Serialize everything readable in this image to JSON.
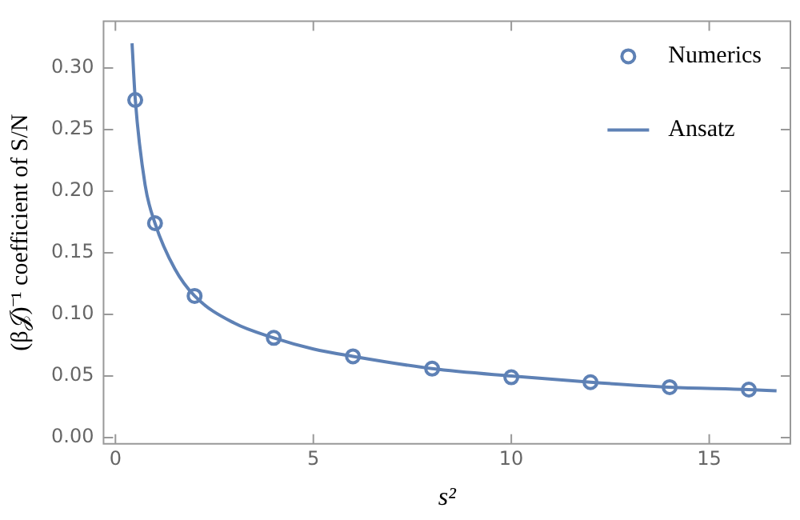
{
  "chart_data": {
    "type": "scatter",
    "xlabel": "s²",
    "ylabel": "(β𝒥)⁻¹ coefficient of S/N",
    "series": [
      {
        "name": "Numerics",
        "type": "scatter",
        "color": "#5e81b5",
        "marker": "circle",
        "x": [
          0.5,
          1,
          2,
          4,
          6,
          8,
          10,
          12,
          14,
          16
        ],
        "values": [
          0.274,
          0.174,
          0.115,
          0.081,
          0.066,
          0.056,
          0.049,
          0.045,
          0.041,
          0.039
        ]
      },
      {
        "name": "Ansatz",
        "type": "line",
        "color": "#5e81b5",
        "marker": "none",
        "line_style": "solid",
        "x": [
          0.42,
          0.5,
          0.75,
          1,
          1.5,
          2,
          3,
          4,
          5,
          6,
          8,
          10,
          12,
          14,
          16,
          16.7
        ],
        "values": [
          0.32,
          0.275,
          0.205,
          0.174,
          0.137,
          0.115,
          0.093,
          0.081,
          0.072,
          0.066,
          0.056,
          0.05,
          0.045,
          0.041,
          0.039,
          0.038
        ]
      }
    ],
    "xlim": [
      -0.3,
      17.05
    ],
    "xticks": [
      0,
      5,
      10,
      15
    ],
    "ylim": [
      -0.005,
      0.338
    ],
    "yticks": [
      {
        "value": 0,
        "label": "0.00"
      },
      {
        "value": 0.05,
        "label": "0.05"
      },
      {
        "value": 0.1,
        "label": "0.10"
      },
      {
        "value": 0.15,
        "label": "0.15"
      },
      {
        "value": 0.2,
        "label": "0.20"
      },
      {
        "value": 0.25,
        "label": "0.25"
      },
      {
        "value": 0.3,
        "label": "0.30"
      }
    ],
    "grid": false,
    "legend": "top right"
  }
}
